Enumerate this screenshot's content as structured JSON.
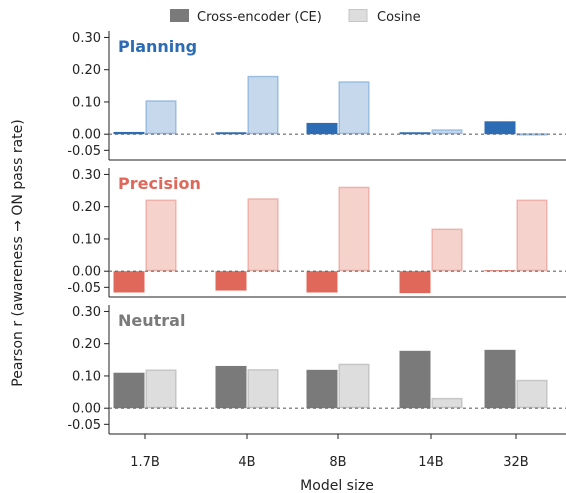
{
  "chart_data": {
    "type": "bar",
    "categories": [
      "1.7B",
      "4B",
      "8B",
      "14B",
      "32B"
    ],
    "xlabel": "Model size",
    "ylabel": "Pearson r (awareness → ON pass rate)",
    "legend": {
      "position": "top-center",
      "entries": [
        "Cross-encoder (CE)",
        "Cosine"
      ]
    },
    "yticks": [
      "0.30",
      "0.20",
      "0.10",
      "0.00",
      "-0.05"
    ],
    "panels": [
      {
        "label": "Planning",
        "color": "#2b6cb5",
        "light_color": "#c6d8ec",
        "light_edge": "#9bbde0",
        "ylim": [
          -0.08,
          0.32
        ],
        "series": [
          {
            "name": "Cross-encoder (CE)",
            "values": [
              0.007,
              0.006,
              0.035,
              0.006,
              0.04
            ]
          },
          {
            "name": "Cosine",
            "values": [
              0.105,
              0.181,
              0.164,
              0.015,
              0.003
            ]
          }
        ]
      },
      {
        "label": "Precision",
        "color": "#e0685a",
        "light_color": "#f5d2cc",
        "light_edge": "#eeb2aa",
        "ylim": [
          -0.08,
          0.32
        ],
        "series": [
          {
            "name": "Cross-encoder (CE)",
            "values": [
              -0.066,
              -0.06,
              -0.066,
              -0.068,
              0.003
            ]
          },
          {
            "name": "Cosine",
            "values": [
              0.222,
              0.226,
              0.262,
              0.132,
              0.222
            ]
          }
        ]
      },
      {
        "label": "Neutral",
        "color": "#7a7a7a",
        "light_color": "#dddddd",
        "light_edge": "#c6c6c6",
        "ylim": [
          -0.08,
          0.32
        ],
        "series": [
          {
            "name": "Cross-encoder (CE)",
            "values": [
              0.11,
              0.131,
              0.119,
              0.178,
              0.181
            ]
          },
          {
            "name": "Cosine",
            "values": [
              0.12,
              0.121,
              0.138,
              0.032,
              0.088
            ]
          }
        ]
      }
    ]
  }
}
